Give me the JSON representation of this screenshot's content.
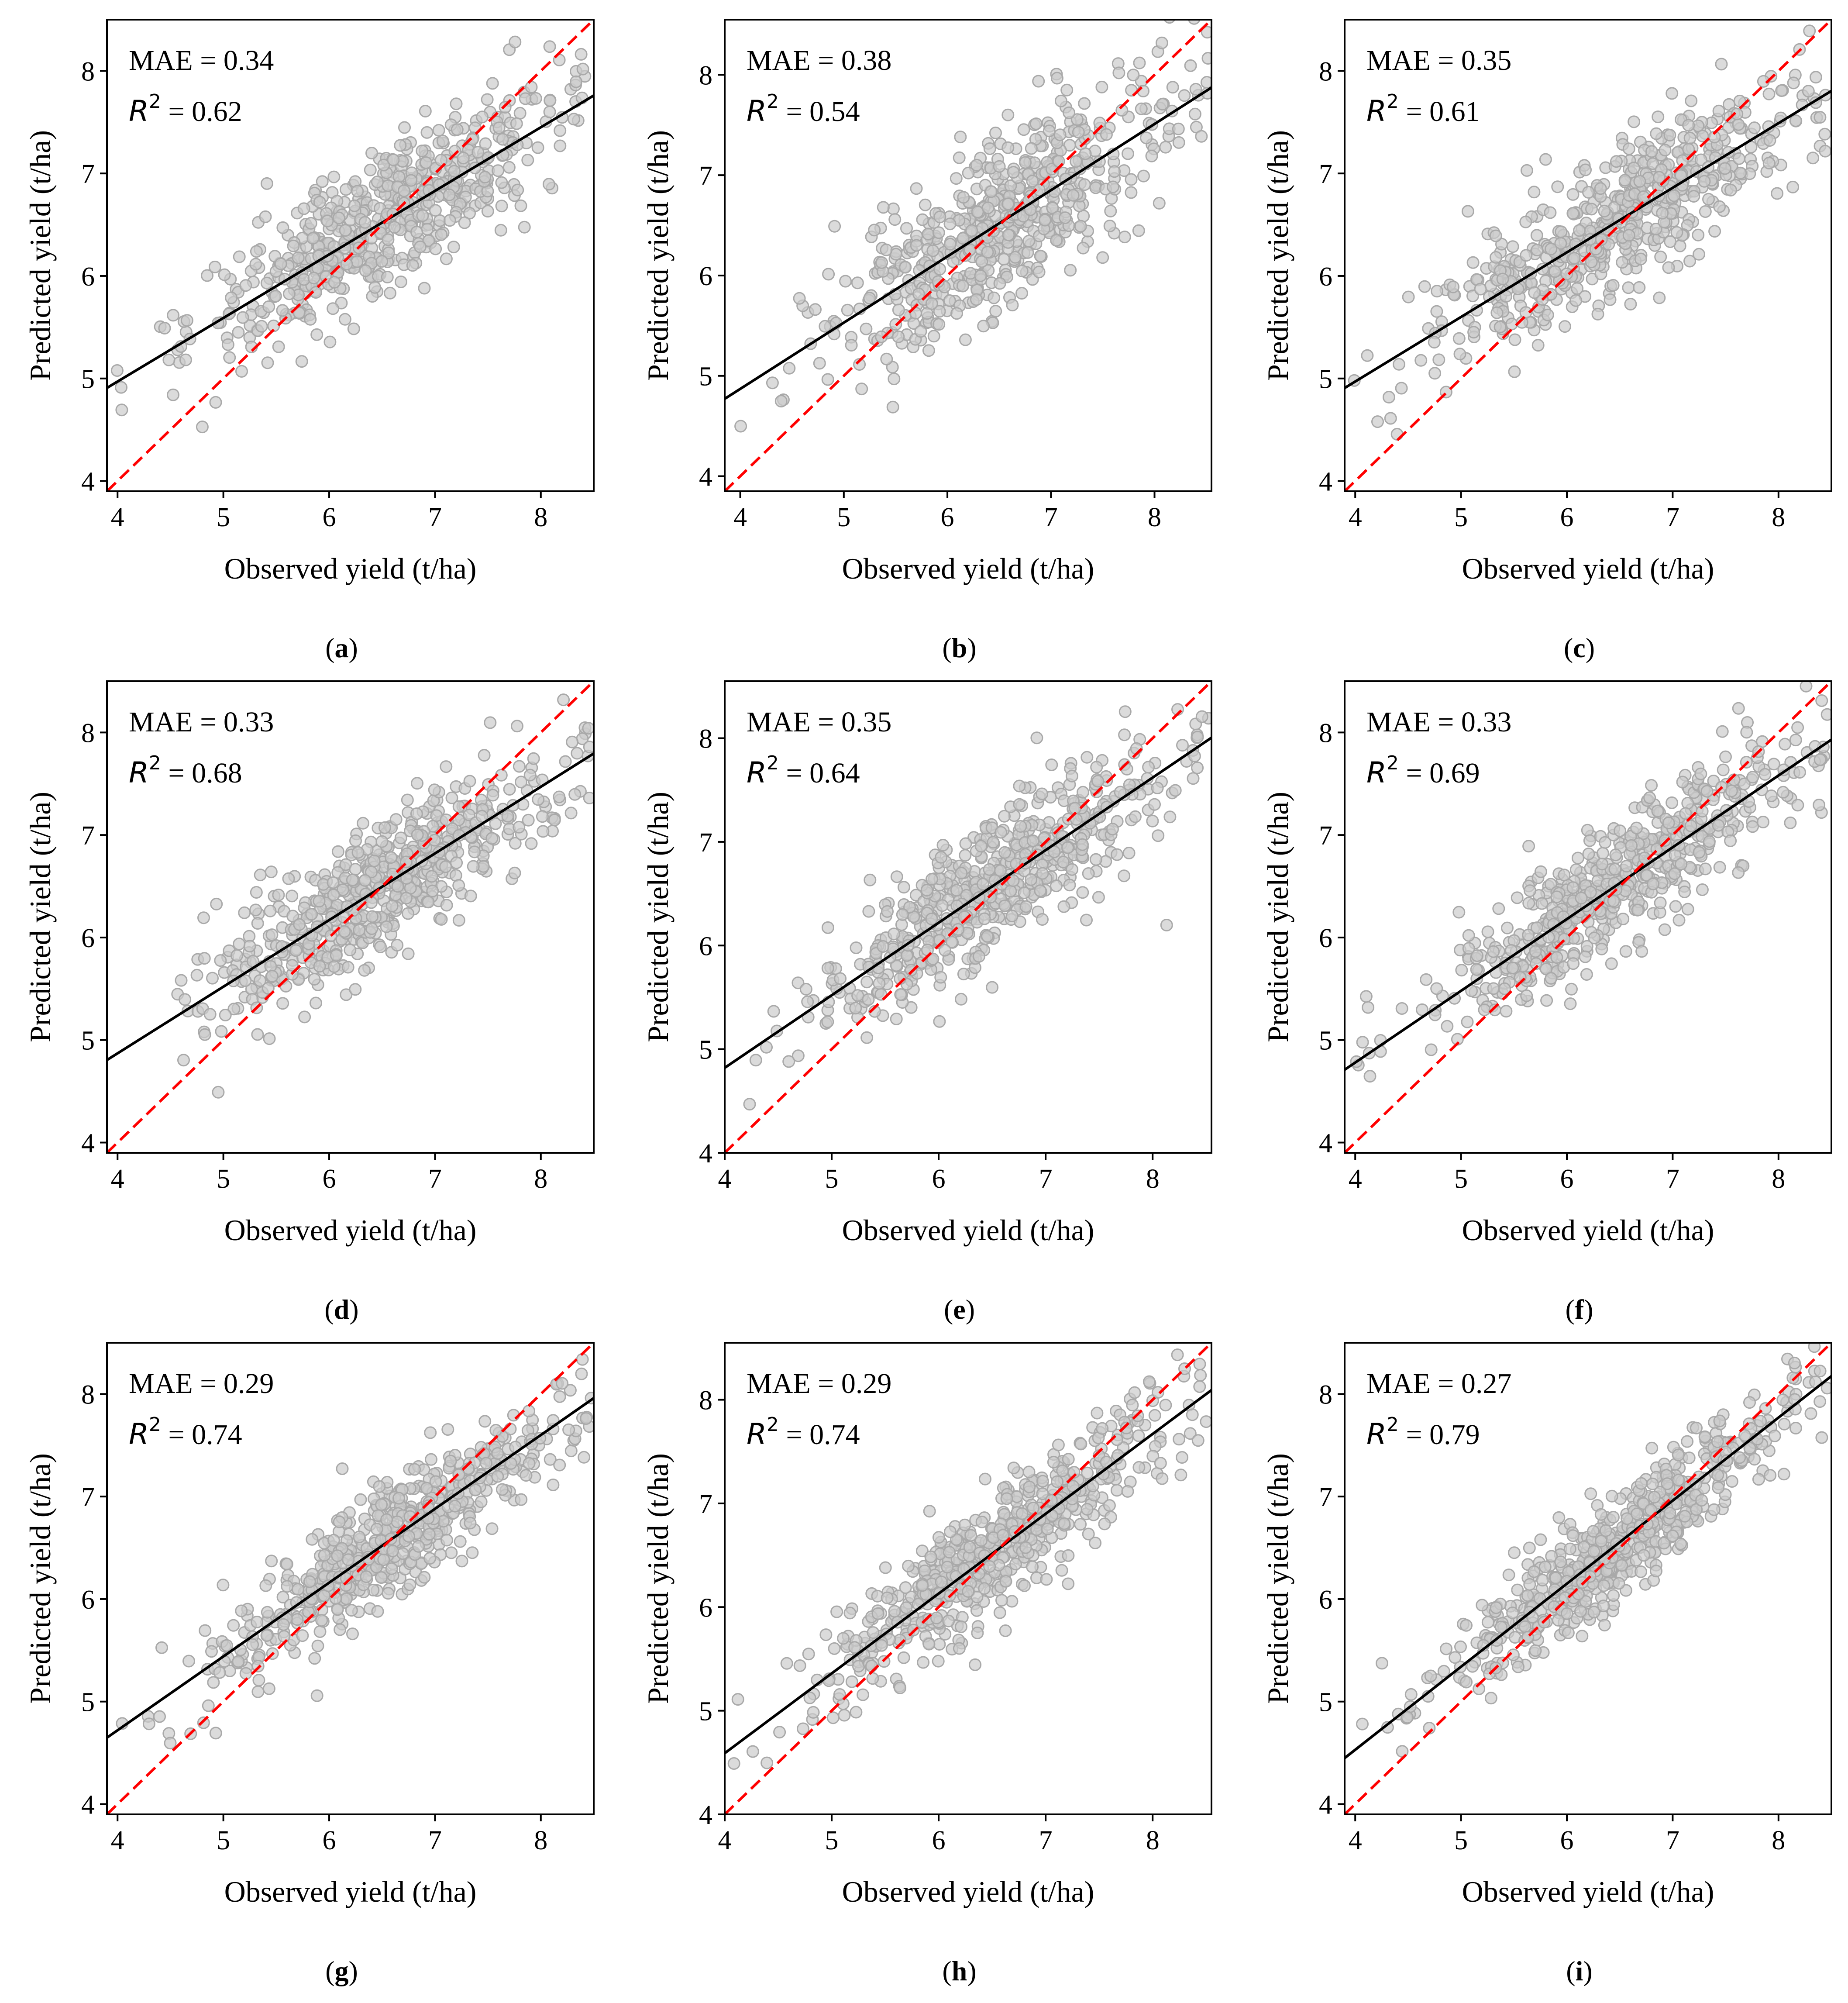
{
  "figure": {
    "x_label": "Observed yield (t/ha)",
    "y_label": "Predicted yield (t/ha)",
    "mae_prefix": "MAE = ",
    "r2_symbol": "R",
    "r2_exponent": "2",
    "r2_equals": " = ",
    "colors": {
      "points_fill": "#cccccc",
      "points_stroke": "#a9a9a9",
      "fit_line": "#000000",
      "identity_line": "#ff0000",
      "axes": "#000000"
    }
  },
  "chart_data": [
    {
      "type": "scatter",
      "panel": "(a)",
      "label_letter": "a",
      "MAE": "0.34",
      "R2": "0.62",
      "xlim": [
        3.9,
        8.5
      ],
      "ylim": [
        3.9,
        8.5
      ],
      "xticks": [
        4,
        5,
        6,
        7,
        8
      ],
      "yticks": [
        4,
        5,
        6,
        7,
        8
      ],
      "fit_line": {
        "intercept": 2.49,
        "slope": 0.62
      },
      "identity_line": {
        "style": "dashed"
      },
      "scatter_hint": {
        "n_points": 600,
        "center": 6.5,
        "x_sd": 0.85,
        "resid_sd": 0.34
      }
    },
    {
      "type": "scatter",
      "panel": "(b)",
      "label_letter": "b",
      "MAE": "0.38",
      "R2": "0.54",
      "xlim": [
        3.85,
        8.55
      ],
      "ylim": [
        3.85,
        8.55
      ],
      "xticks": [
        4,
        5,
        6,
        7,
        8
      ],
      "yticks": [
        4,
        5,
        6,
        7,
        8
      ],
      "fit_line": {
        "intercept": 2.23,
        "slope": 0.66
      },
      "identity_line": {
        "style": "dashed"
      },
      "scatter_hint": {
        "n_points": 600,
        "center": 6.5,
        "x_sd": 0.85,
        "resid_sd": 0.42
      }
    },
    {
      "type": "scatter",
      "panel": "(c)",
      "label_letter": "c",
      "MAE": "0.35",
      "R2": "0.61",
      "xlim": [
        3.9,
        8.5
      ],
      "ylim": [
        3.9,
        8.5
      ],
      "xticks": [
        4,
        5,
        6,
        7,
        8
      ],
      "yticks": [
        4,
        5,
        6,
        7,
        8
      ],
      "fit_line": {
        "intercept": 2.45,
        "slope": 0.63
      },
      "identity_line": {
        "style": "dashed"
      },
      "scatter_hint": {
        "n_points": 600,
        "center": 6.5,
        "x_sd": 0.85,
        "resid_sd": 0.35
      }
    },
    {
      "type": "scatter",
      "panel": "(d)",
      "label_letter": "d",
      "MAE": "0.33",
      "R2": "0.68",
      "xlim": [
        3.9,
        8.5
      ],
      "ylim": [
        3.9,
        8.5
      ],
      "xticks": [
        4,
        5,
        6,
        7,
        8
      ],
      "yticks": [
        4,
        5,
        6,
        7,
        8
      ],
      "fit_line": {
        "intercept": 2.27,
        "slope": 0.65
      },
      "identity_line": {
        "style": "dashed"
      },
      "scatter_hint": {
        "n_points": 600,
        "center": 6.5,
        "x_sd": 0.85,
        "resid_sd": 0.32
      }
    },
    {
      "type": "scatter",
      "panel": "(e)",
      "label_letter": "e",
      "MAE": "0.35",
      "R2": "0.64",
      "xlim": [
        4.0,
        8.55
      ],
      "ylim": [
        4.0,
        8.55
      ],
      "xticks": [
        4,
        5,
        6,
        7,
        8
      ],
      "yticks": [
        4,
        5,
        6,
        7,
        8
      ],
      "fit_line": {
        "intercept": 2.02,
        "slope": 0.7
      },
      "identity_line": {
        "style": "dashed"
      },
      "scatter_hint": {
        "n_points": 600,
        "center": 6.5,
        "x_sd": 0.85,
        "resid_sd": 0.34
      }
    },
    {
      "type": "scatter",
      "panel": "(f)",
      "label_letter": "f",
      "MAE": "0.33",
      "R2": "0.69",
      "xlim": [
        3.9,
        8.5
      ],
      "ylim": [
        3.9,
        8.5
      ],
      "xticks": [
        4,
        5,
        6,
        7,
        8
      ],
      "yticks": [
        4,
        5,
        6,
        7,
        8
      ],
      "fit_line": {
        "intercept": 1.98,
        "slope": 0.7
      },
      "identity_line": {
        "style": "dashed"
      },
      "scatter_hint": {
        "n_points": 600,
        "center": 6.5,
        "x_sd": 0.85,
        "resid_sd": 0.3
      }
    },
    {
      "type": "scatter",
      "panel": "(g)",
      "label_letter": "g",
      "MAE": "0.29",
      "R2": "0.74",
      "xlim": [
        3.9,
        8.5
      ],
      "ylim": [
        3.9,
        8.5
      ],
      "xticks": [
        4,
        5,
        6,
        7,
        8
      ],
      "yticks": [
        4,
        5,
        6,
        7,
        8
      ],
      "fit_line": {
        "intercept": 1.84,
        "slope": 0.72
      },
      "identity_line": {
        "style": "dashed"
      },
      "scatter_hint": {
        "n_points": 600,
        "center": 6.5,
        "x_sd": 0.85,
        "resid_sd": 0.27
      }
    },
    {
      "type": "scatter",
      "panel": "(h)",
      "label_letter": "h",
      "MAE": "0.29",
      "R2": "0.74",
      "xlim": [
        4.0,
        8.55
      ],
      "ylim": [
        4.0,
        8.55
      ],
      "xticks": [
        4,
        5,
        6,
        7,
        8
      ],
      "yticks": [
        4,
        5,
        6,
        7,
        8
      ],
      "fit_line": {
        "intercept": 1.51,
        "slope": 0.77
      },
      "identity_line": {
        "style": "dashed"
      },
      "scatter_hint": {
        "n_points": 600,
        "center": 6.5,
        "x_sd": 0.85,
        "resid_sd": 0.28
      }
    },
    {
      "type": "scatter",
      "panel": "(i)",
      "label_letter": "i",
      "MAE": "0.27",
      "R2": "0.79",
      "xlim": [
        3.9,
        8.5
      ],
      "ylim": [
        3.9,
        8.5
      ],
      "xticks": [
        4,
        5,
        6,
        7,
        8
      ],
      "yticks": [
        4,
        5,
        6,
        7,
        8
      ],
      "fit_line": {
        "intercept": 1.29,
        "slope": 0.81
      },
      "identity_line": {
        "style": "dashed"
      },
      "scatter_hint": {
        "n_points": 600,
        "center": 6.5,
        "x_sd": 0.85,
        "resid_sd": 0.25
      }
    }
  ]
}
